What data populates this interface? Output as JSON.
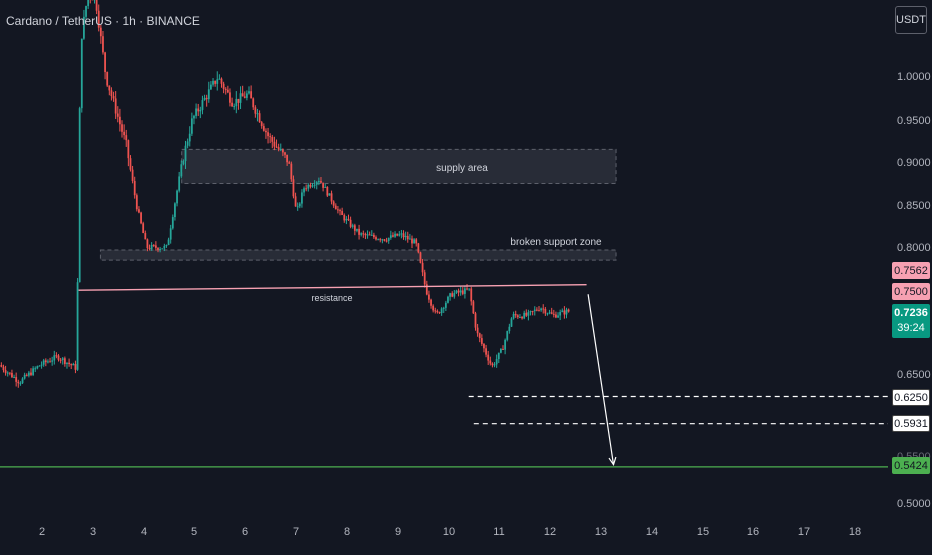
{
  "header": {
    "symbol": "Cardano / TetherUS · 1h · BINANCE",
    "unit_button": "USDT"
  },
  "price_axis": {
    "ticks": [
      "1.0000",
      "0.9500",
      "0.9000",
      "0.8500",
      "0.8000",
      "0.6500",
      "0.5000"
    ],
    "partial_tick": "0.5500"
  },
  "time_axis": {
    "ticks": [
      "2",
      "3",
      "4",
      "5",
      "6",
      "7",
      "8",
      "9",
      "10",
      "11",
      "12",
      "13",
      "14",
      "15",
      "16",
      "17",
      "18"
    ]
  },
  "price_tags": {
    "tag_0756": "0.7562",
    "tag_0750": "0.7500",
    "current_price": "0.7236",
    "countdown": "39:24",
    "tag_0625": "0.6250",
    "tag_0593": "0.5931",
    "tag_0542": "0.5424"
  },
  "annotations": {
    "supply": "supply area",
    "broken_support": "broken support zone",
    "resistance": "resistance"
  },
  "colors": {
    "background": "#131722",
    "up_candle": "#26a69a",
    "down_candle": "#ef5350",
    "resistance_line": "#f7a1b2",
    "target_line": "#4caf50",
    "current_price": "#089981"
  },
  "chart_data": {
    "type": "candlestick",
    "symbol": "Cardano / TetherUS",
    "interval": "1h",
    "ylim": [
      0.48,
      1.12
    ],
    "x_range_days": [
      1.2,
      18.5
    ],
    "path": [
      [
        1.2,
        0.662
      ],
      [
        1.6,
        0.642
      ],
      [
        2.0,
        0.662
      ],
      [
        2.35,
        0.672
      ],
      [
        2.72,
        0.658
      ],
      [
        2.74,
        0.75
      ],
      [
        2.8,
        1.04
      ],
      [
        2.95,
        1.1
      ],
      [
        3.1,
        1.09
      ],
      [
        3.3,
        1.0
      ],
      [
        3.7,
        0.92
      ],
      [
        3.9,
        0.85
      ],
      [
        4.1,
        0.8
      ],
      [
        4.5,
        0.8
      ],
      [
        4.8,
        0.9
      ],
      [
        5.0,
        0.95
      ],
      [
        5.5,
        1.0
      ],
      [
        5.8,
        0.97
      ],
      [
        6.1,
        0.98
      ],
      [
        6.5,
        0.93
      ],
      [
        6.9,
        0.9
      ],
      [
        7.05,
        0.84
      ],
      [
        7.2,
        0.87
      ],
      [
        7.5,
        0.88
      ],
      [
        7.9,
        0.84
      ],
      [
        8.3,
        0.815
      ],
      [
        8.8,
        0.81
      ],
      [
        9.1,
        0.815
      ],
      [
        9.4,
        0.805
      ],
      [
        9.6,
        0.75
      ],
      [
        9.8,
        0.72
      ],
      [
        10.1,
        0.745
      ],
      [
        10.45,
        0.75
      ],
      [
        10.6,
        0.7
      ],
      [
        10.9,
        0.66
      ],
      [
        11.1,
        0.68
      ],
      [
        11.3,
        0.72
      ],
      [
        11.6,
        0.72
      ],
      [
        11.85,
        0.73
      ],
      [
        12.1,
        0.72
      ],
      [
        12.38,
        0.725
      ]
    ],
    "zones": {
      "supply_area": {
        "y": [
          0.875,
          0.915
        ],
        "x": [
          4.75,
          13.3
        ]
      },
      "broken_support_zone": {
        "y": [
          0.785,
          0.797
        ],
        "x": [
          3.15,
          13.3
        ]
      },
      "top_zone": {
        "y": [
          1.11,
          1.125
        ],
        "x": [
          1.2,
          18.5
        ]
      }
    },
    "lines": {
      "resistance": {
        "x": [
          2.72,
          12.72
        ],
        "y": [
          0.7498,
          0.7562
        ]
      },
      "level_0625": {
        "x": [
          10.4,
          18.5
        ],
        "y": 0.625
      },
      "level_0593": {
        "x": [
          10.5,
          18.5
        ],
        "y": 0.5931
      },
      "target_0542": {
        "x": [
          1.2,
          18.5
        ],
        "y": 0.5424
      },
      "projection_arrow": {
        "from": [
          12.75,
          0.745
        ],
        "to": [
          13.25,
          0.545
        ]
      }
    }
  }
}
